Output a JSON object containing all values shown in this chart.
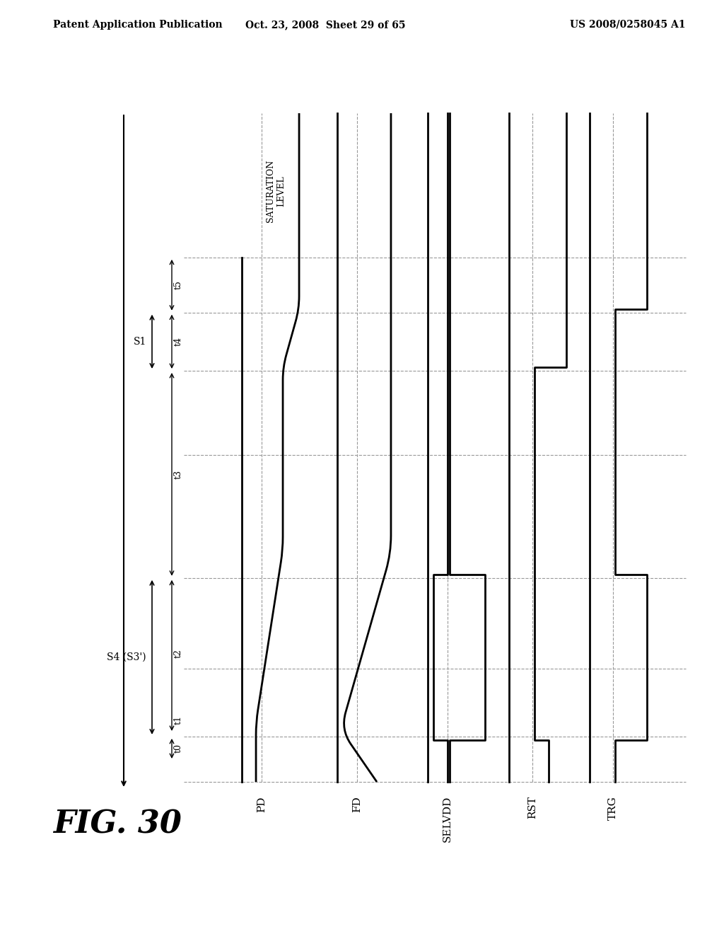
{
  "bg_color": "#ffffff",
  "line_color": "#000000",
  "dashed_color": "#999999",
  "header_left": "Patent Application Publication",
  "header_center": "Oct. 23, 2008  Sheet 29 of 65",
  "header_right": "US 2008/0258045 A1",
  "fig_label": "FIG. 30",
  "signal_labels": [
    "PD",
    "FD",
    "SELVDD",
    "RST",
    "TRG"
  ],
  "time_labels": [
    "t0",
    "t1",
    "t2",
    "t3",
    "t4",
    "t5"
  ],
  "saturation_label": "SATURATION\nLEVEL",
  "s1_label": "S1",
  "s4_label": "S4 (S3')"
}
